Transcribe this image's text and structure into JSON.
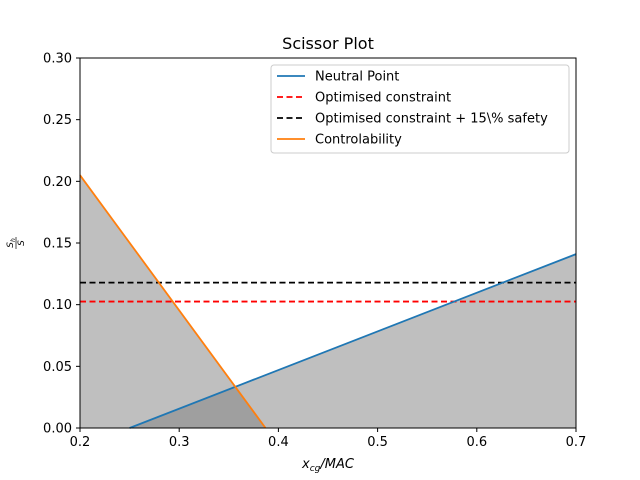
{
  "chart_data": {
    "type": "line",
    "title": "Scissor Plot",
    "xlabel": "x_cg/MAC",
    "xlabel_main": "x",
    "xlabel_sub": "cg",
    "xlabel_rest": "/MAC",
    "ylabel": "S_h/S",
    "ylabel_num": "S",
    "ylabel_num_sub": "h",
    "ylabel_den": "S",
    "xlim": [
      0.2,
      0.7
    ],
    "ylim": [
      0.0,
      0.3
    ],
    "xticks": [
      0.2,
      0.3,
      0.4,
      0.5,
      0.6,
      0.7
    ],
    "yticks": [
      0.0,
      0.05,
      0.1,
      0.15,
      0.2,
      0.25,
      0.3
    ],
    "xtick_labels": [
      "0.2",
      "0.3",
      "0.4",
      "0.5",
      "0.6",
      "0.7"
    ],
    "ytick_labels": [
      "0.00",
      "0.05",
      "0.10",
      "0.15",
      "0.20",
      "0.25",
      "0.30"
    ],
    "grid": false,
    "legend_position": "top-right",
    "series": [
      {
        "name": "Neutral Point",
        "style": "solid",
        "color": "#1f77b4",
        "x": [
          0.25,
          0.7
        ],
        "y": [
          0.0,
          0.141
        ]
      },
      {
        "name": "Optimised constraint",
        "style": "dashed",
        "color": "#ff0000",
        "x": [
          0.2,
          0.7
        ],
        "y": [
          0.1025,
          0.1025
        ]
      },
      {
        "name": "Optimised constraint + 15\\% safety",
        "style": "dashed",
        "color": "#000000",
        "x": [
          0.2,
          0.7
        ],
        "y": [
          0.1179,
          0.1179
        ]
      },
      {
        "name": "Controlability",
        "style": "solid",
        "color": "#ff7f0e",
        "x": [
          0.2,
          0.387
        ],
        "y": [
          0.205,
          0.0
        ]
      }
    ],
    "fill_color": "#808080"
  }
}
